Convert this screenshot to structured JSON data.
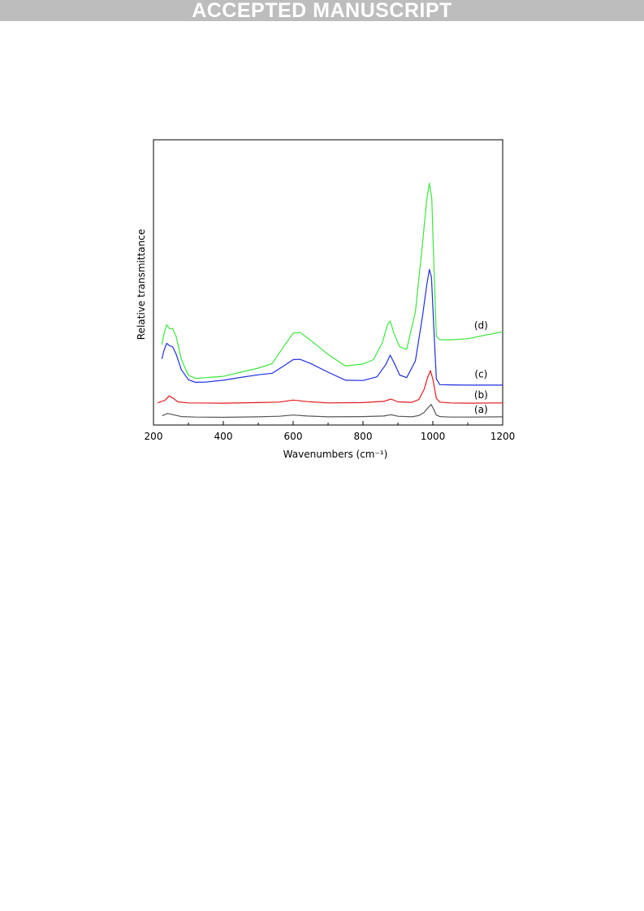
{
  "page": {
    "banner": "ACCEPTED MANUSCRIPT"
  },
  "chart_data": {
    "type": "line",
    "xlabel": "Wavenumbers (cm⁻¹)",
    "ylabel": "Relative transmittance",
    "xlim": [
      200,
      1200
    ],
    "ylim": [
      0,
      100
    ],
    "x_ticks": [
      "200",
      "400",
      "600",
      "800",
      "1000",
      "1200"
    ],
    "grid": false,
    "legend": "none",
    "series": [
      {
        "name": "(a)",
        "color": "#555555",
        "points": [
          [
            225,
            1.7
          ],
          [
            240,
            2.6
          ],
          [
            250,
            2.3
          ],
          [
            260,
            2.0
          ],
          [
            280,
            1.4
          ],
          [
            320,
            1.2
          ],
          [
            400,
            1.1
          ],
          [
            500,
            1.3
          ],
          [
            560,
            1.5
          ],
          [
            600,
            2.0
          ],
          [
            640,
            1.6
          ],
          [
            700,
            1.3
          ],
          [
            800,
            1.4
          ],
          [
            860,
            1.6
          ],
          [
            880,
            2.1
          ],
          [
            900,
            1.5
          ],
          [
            940,
            1.3
          ],
          [
            960,
            1.8
          ],
          [
            975,
            3.0
          ],
          [
            985,
            4.6
          ],
          [
            995,
            6.1
          ],
          [
            1002,
            4.3
          ],
          [
            1010,
            2.0
          ],
          [
            1020,
            1.4
          ],
          [
            1050,
            1.2
          ],
          [
            1100,
            1.2
          ],
          [
            1200,
            1.3
          ]
        ]
      },
      {
        "name": "(b)",
        "color": "#e41a1c",
        "points": [
          [
            212,
            6.7
          ],
          [
            222,
            7.3
          ],
          [
            232,
            7.6
          ],
          [
            245,
            9.4
          ],
          [
            255,
            8.6
          ],
          [
            270,
            7.1
          ],
          [
            300,
            6.7
          ],
          [
            400,
            6.6
          ],
          [
            500,
            6.8
          ],
          [
            560,
            7.0
          ],
          [
            600,
            7.8
          ],
          [
            640,
            7.2
          ],
          [
            700,
            6.7
          ],
          [
            800,
            6.8
          ],
          [
            860,
            7.3
          ],
          [
            880,
            8.2
          ],
          [
            900,
            7.1
          ],
          [
            940,
            6.9
          ],
          [
            960,
            8.0
          ],
          [
            975,
            12.0
          ],
          [
            985,
            16.5
          ],
          [
            993,
            19.2
          ],
          [
            1000,
            16.0
          ],
          [
            1010,
            8.5
          ],
          [
            1020,
            7.0
          ],
          [
            1050,
            6.7
          ],
          [
            1100,
            6.6
          ],
          [
            1200,
            6.7
          ]
        ]
      },
      {
        "name": "(c)",
        "color": "#1f2fe0",
        "points": [
          [
            224,
            23.8
          ],
          [
            230,
            27.0
          ],
          [
            238,
            29.8
          ],
          [
            245,
            29.0
          ],
          [
            255,
            28.4
          ],
          [
            265,
            25.6
          ],
          [
            280,
            19.5
          ],
          [
            300,
            15.7
          ],
          [
            320,
            14.7
          ],
          [
            350,
            14.8
          ],
          [
            400,
            15.5
          ],
          [
            450,
            16.6
          ],
          [
            500,
            17.6
          ],
          [
            540,
            18.2
          ],
          [
            570,
            20.8
          ],
          [
            600,
            23.5
          ],
          [
            620,
            23.6
          ],
          [
            650,
            22.0
          ],
          [
            700,
            18.6
          ],
          [
            750,
            15.5
          ],
          [
            800,
            15.4
          ],
          [
            840,
            16.8
          ],
          [
            865,
            21.5
          ],
          [
            878,
            25.2
          ],
          [
            890,
            22.0
          ],
          [
            905,
            17.5
          ],
          [
            925,
            16.5
          ],
          [
            950,
            23.0
          ],
          [
            970,
            40.0
          ],
          [
            982,
            52.0
          ],
          [
            990,
            58.5
          ],
          [
            996,
            55.5
          ],
          [
            1003,
            35.0
          ],
          [
            1010,
            16.0
          ],
          [
            1020,
            13.8
          ],
          [
            1050,
            13.7
          ],
          [
            1100,
            13.6
          ],
          [
            1200,
            13.6
          ]
        ]
      },
      {
        "name": "(d)",
        "color": "#3ce63c",
        "points": [
          [
            224,
            29.4
          ],
          [
            230,
            33.5
          ],
          [
            238,
            37.0
          ],
          [
            245,
            35.6
          ],
          [
            255,
            35.5
          ],
          [
            265,
            32.5
          ],
          [
            280,
            23.5
          ],
          [
            300,
            17.4
          ],
          [
            320,
            16.2
          ],
          [
            350,
            16.5
          ],
          [
            400,
            17.0
          ],
          [
            450,
            18.6
          ],
          [
            500,
            20.2
          ],
          [
            540,
            22.0
          ],
          [
            570,
            28.0
          ],
          [
            600,
            33.8
          ],
          [
            620,
            34.0
          ],
          [
            650,
            31.0
          ],
          [
            700,
            25.5
          ],
          [
            750,
            21.0
          ],
          [
            800,
            21.8
          ],
          [
            830,
            23.5
          ],
          [
            855,
            30.0
          ],
          [
            870,
            37.0
          ],
          [
            878,
            38.5
          ],
          [
            888,
            34.0
          ],
          [
            905,
            28.5
          ],
          [
            925,
            27.5
          ],
          [
            950,
            42.0
          ],
          [
            970,
            68.0
          ],
          [
            982,
            85.0
          ],
          [
            990,
            92.0
          ],
          [
            997,
            86.0
          ],
          [
            1003,
            60.0
          ],
          [
            1010,
            32.5
          ],
          [
            1020,
            31.2
          ],
          [
            1050,
            31.2
          ],
          [
            1100,
            31.6
          ],
          [
            1150,
            33.0
          ],
          [
            1200,
            34.3
          ]
        ]
      }
    ],
    "annotations": [
      {
        "text": "(d)",
        "x": 1138,
        "y": 35.5,
        "series": 3
      },
      {
        "text": "(c)",
        "x": 1138,
        "y": 16.5,
        "series": 2
      },
      {
        "text": "(b)",
        "x": 1138,
        "y": 8.5,
        "series": 1
      },
      {
        "text": "(a)",
        "x": 1138,
        "y": 2.8,
        "series": 0
      }
    ]
  }
}
